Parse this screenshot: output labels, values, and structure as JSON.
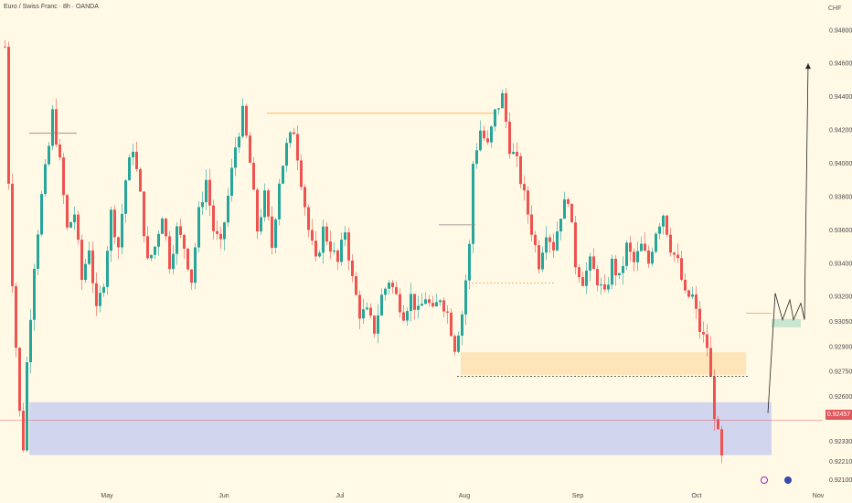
{
  "header": {
    "title": "Euro / Swiss Franc · 8h · OANDA",
    "currency": "CHF"
  },
  "current_price": {
    "label": "0.92457",
    "value": 0.92457,
    "color": "#e0575c"
  },
  "chart_data": {
    "type": "candlestick",
    "symbol": "EURCHF",
    "timeframe": "8h",
    "x_ticks": [
      "May",
      "Jun",
      "Jul",
      "Aug",
      "Sep",
      "Oct",
      "Nov"
    ],
    "y_ticks": [
      "0.94800",
      "0.94600",
      "0.94400",
      "0.94200",
      "0.94000",
      "0.93800",
      "0.93600",
      "0.93400",
      "0.93200",
      "0.93050",
      "0.92900",
      "0.92750",
      "0.92600",
      "0.92330",
      "0.92210",
      "0.92100"
    ],
    "ylim": [
      0.9207,
      0.9498
    ],
    "grid": false,
    "up_color": "#26a69a",
    "down_color": "#ef5350",
    "close_path": [
      [
        0,
        0.947
      ],
      [
        1,
        0.939
      ],
      [
        2,
        0.933
      ],
      [
        3,
        0.929
      ],
      [
        4,
        0.925
      ],
      [
        5,
        0.923
      ],
      [
        6,
        0.928
      ],
      [
        7,
        0.931
      ],
      [
        8,
        0.934
      ],
      [
        10,
        0.938
      ],
      [
        12,
        0.941
      ],
      [
        13,
        0.943
      ],
      [
        15,
        0.94
      ],
      [
        17,
        0.936
      ],
      [
        19,
        0.937
      ],
      [
        21,
        0.933
      ],
      [
        23,
        0.935
      ],
      [
        25,
        0.931
      ],
      [
        27,
        0.933
      ],
      [
        29,
        0.937
      ],
      [
        31,
        0.935
      ],
      [
        33,
        0.939
      ],
      [
        35,
        0.941
      ],
      [
        37,
        0.938
      ],
      [
        39,
        0.934
      ],
      [
        41,
        0.935
      ],
      [
        43,
        0.937
      ],
      [
        45,
        0.934
      ],
      [
        47,
        0.936
      ],
      [
        49,
        0.935
      ],
      [
        51,
        0.933
      ],
      [
        53,
        0.937
      ],
      [
        55,
        0.939
      ],
      [
        57,
        0.936
      ],
      [
        59,
        0.935
      ],
      [
        61,
        0.938
      ],
      [
        63,
        0.941
      ],
      [
        65,
        0.943
      ],
      [
        67,
        0.94
      ],
      [
        69,
        0.936
      ],
      [
        71,
        0.938
      ],
      [
        73,
        0.935
      ],
      [
        75,
        0.939
      ],
      [
        77,
        0.941
      ],
      [
        79,
        0.942
      ],
      [
        81,
        0.939
      ],
      [
        83,
        0.936
      ],
      [
        85,
        0.934
      ],
      [
        87,
        0.936
      ],
      [
        89,
        0.935
      ],
      [
        91,
        0.934
      ],
      [
        93,
        0.936
      ],
      [
        95,
        0.933
      ],
      [
        97,
        0.931
      ],
      [
        99,
        0.931
      ],
      [
        101,
        0.93
      ],
      [
        103,
        0.932
      ],
      [
        105,
        0.933
      ],
      [
        107,
        0.932
      ],
      [
        109,
        0.931
      ],
      [
        111,
        0.932
      ],
      [
        113,
        0.931
      ],
      [
        115,
        0.932
      ],
      [
        117,
        0.931
      ],
      [
        119,
        0.932
      ],
      [
        121,
        0.931
      ],
      [
        123,
        0.929
      ],
      [
        125,
        0.931
      ],
      [
        127,
        0.935
      ],
      [
        128,
        0.94
      ],
      [
        130,
        0.942
      ],
      [
        132,
        0.941
      ],
      [
        134,
        0.943
      ],
      [
        136,
        0.944
      ],
      [
        138,
        0.941
      ],
      [
        140,
        0.94
      ],
      [
        142,
        0.938
      ],
      [
        144,
        0.936
      ],
      [
        146,
        0.934
      ],
      [
        148,
        0.936
      ],
      [
        150,
        0.935
      ],
      [
        152,
        0.937
      ],
      [
        154,
        0.938
      ],
      [
        156,
        0.934
      ],
      [
        158,
        0.933
      ],
      [
        160,
        0.934
      ],
      [
        162,
        0.933
      ],
      [
        164,
        0.932
      ],
      [
        166,
        0.934
      ],
      [
        168,
        0.933
      ],
      [
        170,
        0.935
      ],
      [
        172,
        0.934
      ],
      [
        174,
        0.935
      ],
      [
        176,
        0.934
      ],
      [
        178,
        0.936
      ],
      [
        180,
        0.937
      ],
      [
        182,
        0.935
      ],
      [
        184,
        0.934
      ],
      [
        186,
        0.932
      ],
      [
        188,
        0.932
      ],
      [
        190,
        0.93
      ],
      [
        192,
        0.929
      ],
      [
        194,
        0.925
      ],
      [
        196,
        0.9222
      ]
    ],
    "candle_count": 200,
    "annotations": {
      "levels": [
        {
          "from": [
            72,
            0.943
          ],
          "to": [
            134,
            0.943
          ],
          "color": "#f4a53a",
          "style": "solid"
        },
        {
          "from": [
            7,
            0.9418
          ],
          "to": [
            20,
            0.9418
          ],
          "color": "#888888",
          "style": "solid"
        },
        {
          "from": [
            119,
            0.9363
          ],
          "to": [
            129,
            0.9363
          ],
          "color": "#888888",
          "style": "solid"
        },
        {
          "from": [
            128,
            0.9328
          ],
          "to": [
            151,
            0.9328
          ],
          "color": "#f4a53a",
          "style": "dashed"
        },
        {
          "from": [
            124,
            0.9272
          ],
          "to": [
            204,
            0.9272
          ],
          "color": "#333333",
          "style": "dashed"
        },
        {
          "from": [
            203,
            0.931
          ],
          "to": [
            210,
            0.931
          ],
          "color": "#f4a53a",
          "style": "solid"
        }
      ],
      "zones": [
        {
          "x": [
            7,
            210
          ],
          "y": [
            0.92248,
            0.92565
          ],
          "color": "#c9cfef"
        },
        {
          "x": [
            125,
            203
          ],
          "y": [
            0.9273,
            0.92865
          ],
          "color": "#fde2b0"
        },
        {
          "x": [
            210,
            218
          ],
          "y": [
            0.93015,
            0.93065
          ],
          "color": "#bfe3cb"
        }
      ],
      "projection": [
        [
          209,
          0.925
        ],
        [
          211,
          0.9322
        ],
        [
          213,
          0.9306
        ],
        [
          215,
          0.9318
        ],
        [
          216,
          0.9306
        ],
        [
          218,
          0.9316
        ],
        [
          219,
          0.9306
        ],
        [
          220,
          0.946
        ]
      ],
      "axis_markers": [
        "circle-marker",
        "circle-marker"
      ]
    }
  }
}
